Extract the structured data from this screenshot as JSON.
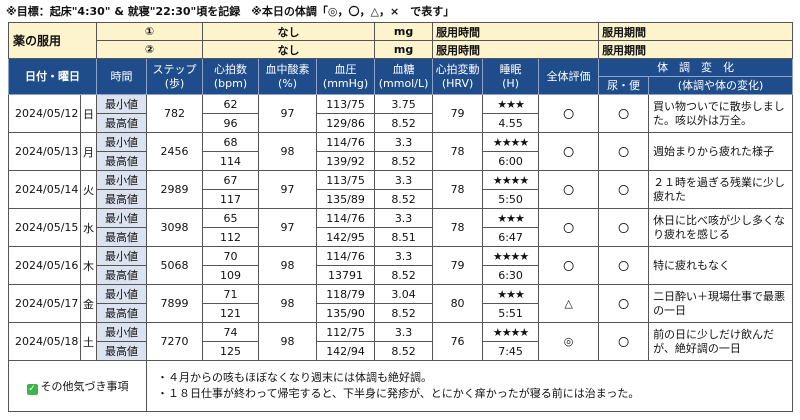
{
  "header": {
    "title": "※目標：起床\"4:30\" & 就寝\"22:30\"頃を記録　※本日の体調「◎，〇，△，×　で表す」"
  },
  "medicine": {
    "label": "薬の服用",
    "rows": [
      {
        "num": "①",
        "name": "なし",
        "unit": "mg",
        "time_label": "服用時間",
        "period_label": "服用期間"
      },
      {
        "num": "②",
        "name": "なし",
        "unit": "mg",
        "time_label": "服用時間",
        "period_label": "服用期間"
      }
    ]
  },
  "columns": {
    "date": "日付・曜日",
    "time": "時間",
    "steps": [
      "ステップ",
      "(歩)"
    ],
    "hr": [
      "心拍数",
      "(bpm)"
    ],
    "spo2": [
      "血中酸素",
      "(%)"
    ],
    "bp": [
      "血圧",
      "(mmHg)"
    ],
    "glucose": [
      "血糖",
      "(mmol/L)"
    ],
    "hrv": [
      "心拍変動",
      "(HRV)"
    ],
    "sleep": [
      "睡眠",
      "(H)"
    ],
    "overall": "全体評価",
    "condition": "体　調　変　化",
    "urine": "尿・便",
    "memo": "(体調や体の変化)"
  },
  "labels": {
    "min": "最小値",
    "max": "最高値"
  },
  "days": [
    {
      "date": "2024/05/12",
      "dow": "日",
      "steps": "782",
      "hr_min": "62",
      "hr_max": "96",
      "spo2": "97",
      "bp_min": "113/75",
      "bp_max": "129/86",
      "glu_min": "3.75",
      "glu_max": "8.52",
      "hrv": "79",
      "stars": "★★★",
      "sleep": "4.55",
      "overall": "〇",
      "urine": "〇",
      "memo": "買い物ついでに散歩しました。咳以外は万全。"
    },
    {
      "date": "2024/05/13",
      "dow": "月",
      "steps": "2456",
      "hr_min": "68",
      "hr_max": "114",
      "spo2": "98",
      "bp_min": "114/76",
      "bp_max": "139/92",
      "glu_min": "3.3",
      "glu_max": "8.52",
      "hrv": "78",
      "stars": "★★★★",
      "sleep": "6:00",
      "overall": "〇",
      "urine": "〇",
      "memo": "週始まりから疲れた様子"
    },
    {
      "date": "2024/05/14",
      "dow": "火",
      "steps": "2989",
      "hr_min": "67",
      "hr_max": "117",
      "spo2": "97",
      "bp_min": "113/75",
      "bp_max": "135/89",
      "glu_min": "3.3",
      "glu_max": "8.52",
      "hrv": "78",
      "stars": "★★★★",
      "sleep": "5:50",
      "overall": "〇",
      "urine": "〇",
      "memo": "２１時を過ぎる残業に少し疲れた"
    },
    {
      "date": "2024/05/15",
      "dow": "水",
      "steps": "3098",
      "hr_min": "65",
      "hr_max": "112",
      "spo2": "97",
      "bp_min": "114/76",
      "bp_max": "142/95",
      "glu_min": "3.3",
      "glu_max": "8.51",
      "hrv": "78",
      "stars": "★★★",
      "sleep": "6:47",
      "overall": "〇",
      "urine": "〇",
      "memo": "休日に比べ咳が少し多くなり疲れを感じる"
    },
    {
      "date": "2024/05/16",
      "dow": "木",
      "steps": "5068",
      "hr_min": "70",
      "hr_max": "109",
      "spo2": "98",
      "bp_min": "114/76",
      "bp_max": "13791",
      "glu_min": "3.3",
      "glu_max": "8.52",
      "hrv": "79",
      "stars": "★★★★",
      "sleep": "6:30",
      "overall": "〇",
      "urine": "〇",
      "memo": "特に疲れもなく"
    },
    {
      "date": "2024/05/17",
      "dow": "金",
      "steps": "7899",
      "hr_min": "71",
      "hr_max": "121",
      "spo2": "98",
      "bp_min": "118/79",
      "bp_max": "135/90",
      "glu_min": "3.04",
      "glu_max": "8.52",
      "hrv": "80",
      "stars": "★★★",
      "sleep": "5:51",
      "overall": "△",
      "urine": "〇",
      "memo": "二日酔い＋現場仕事で最悪の一日"
    },
    {
      "date": "2024/05/18",
      "dow": "土",
      "steps": "7270",
      "hr_min": "74",
      "hr_max": "125",
      "spo2": "98",
      "bp_min": "112/75",
      "bp_max": "142/94",
      "glu_min": "3.3",
      "glu_max": "8.52",
      "hrv": "76",
      "stars": "★★★★",
      "sleep": "7:45",
      "overall": "◎",
      "urine": "〇",
      "memo": "前の日に少しだけ飲んだが、絶好調の一日"
    }
  ],
  "notes": {
    "label": "その他気づき事項",
    "lines": [
      "・４月からの咳もほぼなくなり週末には体調も絶好調。",
      "・１８日仕事が終わって帰宅すると、下半身に発疹が、とにかく痒かったが寝る前には治まった。"
    ]
  }
}
